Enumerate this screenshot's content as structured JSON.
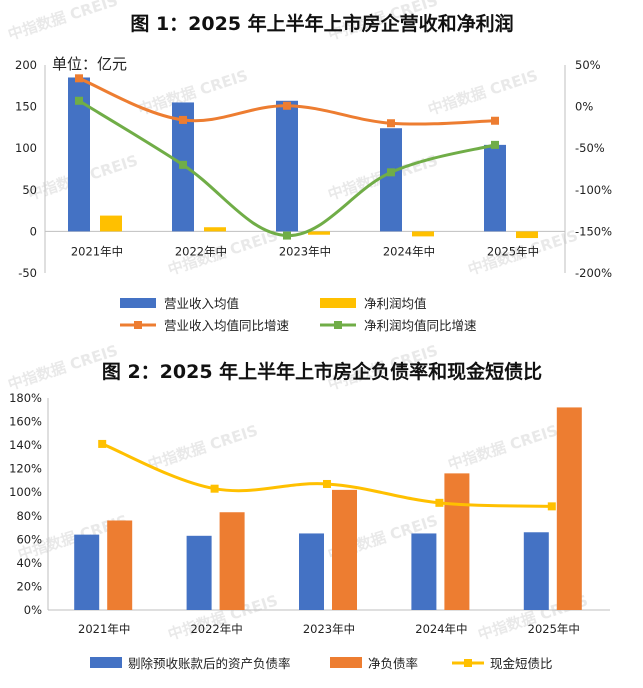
{
  "watermark": "中指数据 CREIS",
  "chart_data": [
    {
      "type": "bar",
      "title": "图 1：2025 年上半年上市房企营收和净利润",
      "unit_label": "单位：亿元",
      "categories": [
        "2021年中",
        "2022年中",
        "2023年中",
        "2024年中",
        "2025年中"
      ],
      "y_ticks": [
        "200",
        "150",
        "100",
        "50",
        "0",
        "-50"
      ],
      "y2_ticks": [
        "50%",
        "0%",
        "-50%",
        "-100%",
        "-150%",
        "-200%"
      ],
      "ylim": [
        -50,
        200
      ],
      "y2lim": [
        -200,
        50
      ],
      "legend_position": "bottom",
      "series": [
        {
          "name": "营业收入均值",
          "type": "bar",
          "axis": "left",
          "color": "#4472C4",
          "values": [
            185,
            155,
            157,
            124,
            104
          ]
        },
        {
          "name": "净利润均值",
          "type": "bar",
          "axis": "left",
          "color": "#FFC000",
          "values": [
            19,
            5,
            -4,
            -6,
            -8
          ]
        },
        {
          "name": "营业收入均值同比增速",
          "type": "line",
          "axis": "right",
          "color": "#ED7D31",
          "values": [
            34,
            -16,
            1,
            -20,
            -17
          ]
        },
        {
          "name": "净利润均值同比增速",
          "type": "line",
          "axis": "right",
          "color": "#70AD47",
          "values": [
            7,
            -70,
            -155,
            -79,
            -46
          ]
        }
      ]
    },
    {
      "type": "bar",
      "title": "图 2：2025 年上半年上市房企负债率和现金短债比",
      "categories": [
        "2021年中",
        "2022年中",
        "2023年中",
        "2024年中",
        "2025年中"
      ],
      "y_ticks": [
        "180%",
        "160%",
        "140%",
        "120%",
        "100%",
        "80%",
        "60%",
        "40%",
        "20%",
        "0%"
      ],
      "ylim": [
        0,
        180
      ],
      "legend_position": "bottom",
      "series": [
        {
          "name": "剔除预收账款后的资产负债率",
          "type": "bar",
          "color": "#4472C4",
          "values": [
            64,
            63,
            65,
            65,
            66
          ]
        },
        {
          "name": "净负债率",
          "type": "bar",
          "color": "#ED7D31",
          "values": [
            76,
            83,
            102,
            116,
            172
          ]
        },
        {
          "name": "现金短债比",
          "type": "line",
          "color": "#FFC000",
          "values": [
            141,
            103,
            107,
            91,
            88
          ]
        }
      ]
    }
  ]
}
